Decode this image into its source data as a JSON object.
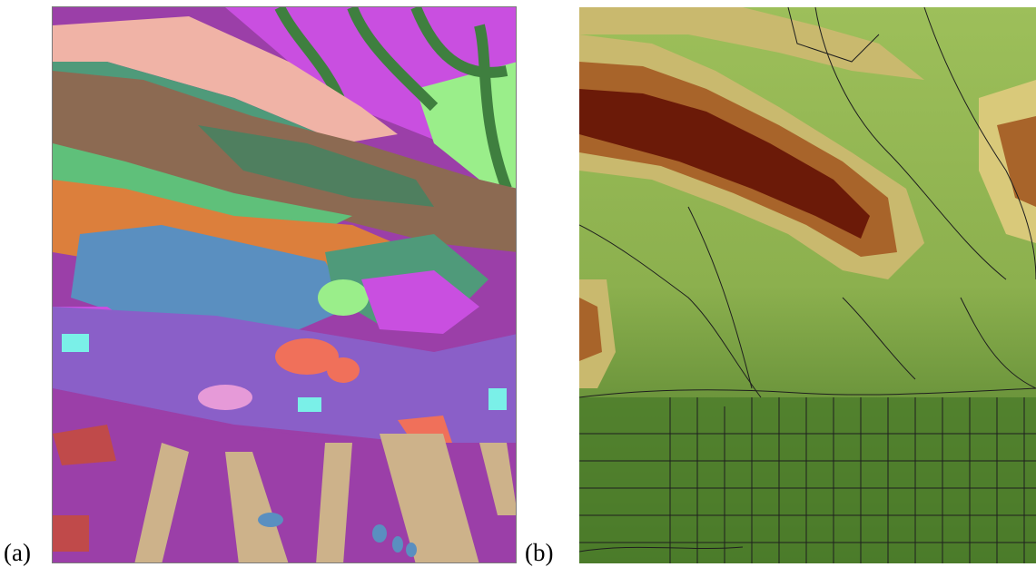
{
  "figure": {
    "panels": [
      {
        "label": "(a)",
        "kind": "geologic-map"
      },
      {
        "label": "(b)",
        "kind": "elevation-map-with-roads"
      }
    ]
  },
  "colors": {
    "geology": {
      "purple_base": "#9b3fa8",
      "magenta": "#c94fe0",
      "brown": "#8c6a52",
      "dark_green": "#3f7f3f",
      "light_green": "#9aee8a",
      "salmon": "#f0b3a6",
      "teal": "#4f9a7a",
      "orange": "#dc7f3c",
      "steel_blue": "#5a8fc0",
      "violet": "#8a5fc8",
      "tan": "#cdb28a",
      "coral": "#f0705a",
      "cyan": "#7af0e8",
      "pink": "#e69ad8"
    },
    "elevation": {
      "high": "#6b1a08",
      "upper": "#a8642a",
      "mid": "#d9c97a",
      "lower": "#b8cf74",
      "low": "#4e7e2c",
      "roads": "#1e1e1e"
    }
  }
}
